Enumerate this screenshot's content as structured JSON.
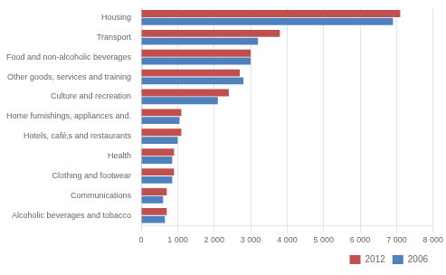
{
  "chart_data": {
    "type": "bar",
    "orientation": "horizontal",
    "categories": [
      "Housing",
      "Transport",
      "Food and non-alcoholic beverages",
      "Other goods, services and training",
      "Culture and recreation",
      "Home furnishings, appliances and.",
      "Hotels, café‚s and restaurants",
      "Health",
      "Clothing and footwear",
      "Communications",
      "Alcoholic beverages and tobacco"
    ],
    "series": [
      {
        "name": "2012",
        "color": "#c0504d",
        "values": [
          7100,
          3800,
          3000,
          2700,
          2400,
          1100,
          1100,
          900,
          900,
          700,
          700
        ]
      },
      {
        "name": "2006",
        "color": "#4f81bd",
        "values": [
          6900,
          3200,
          3000,
          2800,
          2100,
          1050,
          1000,
          850,
          850,
          600,
          650
        ]
      }
    ],
    "xlim": [
      0,
      8000
    ],
    "xticks": [
      0,
      {
        "value": 1000,
        "label": "1 000"
      },
      {
        "value": 2000,
        "label": "2 000"
      },
      {
        "value": 3000,
        "label": "3 000"
      },
      {
        "value": 4000,
        "label": "4 000"
      },
      {
        "value": 5000,
        "label": "5 000"
      },
      {
        "value": 6000,
        "label": "6 000"
      },
      {
        "value": 7000,
        "label": "7 000"
      },
      {
        "value": 8000,
        "label": "8 000"
      }
    ],
    "grid": true,
    "legend": "lower right"
  }
}
